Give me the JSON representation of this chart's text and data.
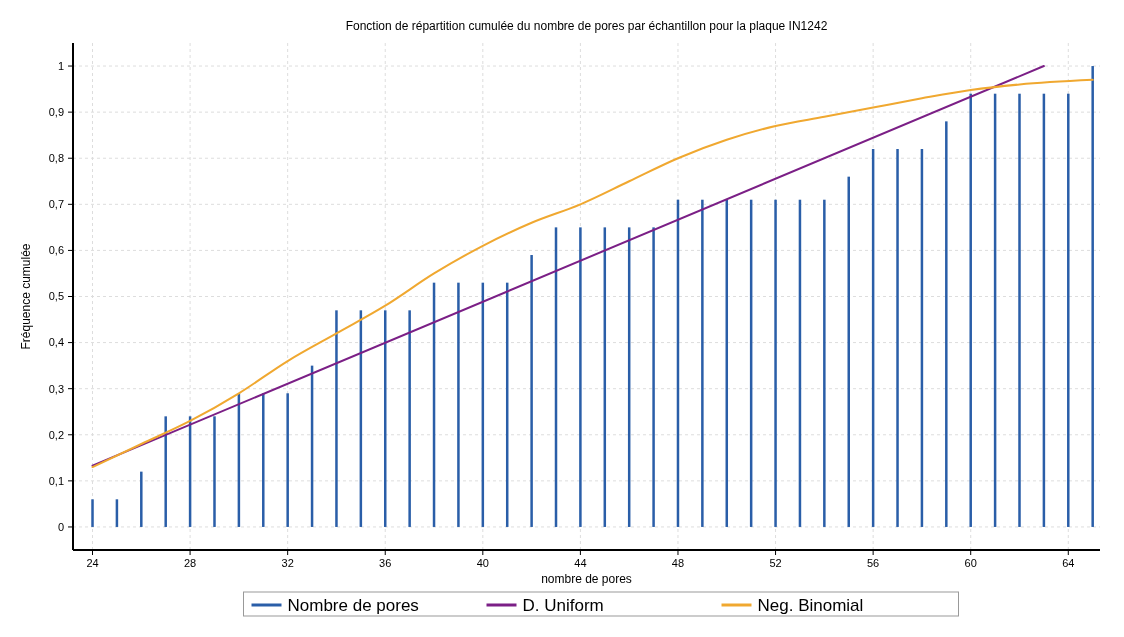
{
  "chart_data": {
    "type": "bar",
    "title": "Fonction de répartition cumulée du nombre de pores par échantillon pour la plaque IN1242",
    "xlabel": "nombre de pores",
    "ylabel": "Fréquence cumulée",
    "xlim": [
      23.2,
      65.3
    ],
    "xticks": [
      24,
      28,
      32,
      36,
      40,
      44,
      48,
      52,
      56,
      60,
      64
    ],
    "ylim": [
      -0.05,
      1.05
    ],
    "yticks": [
      {
        "value": 0,
        "label": "0"
      },
      {
        "value": 0.1,
        "label": "0,1"
      },
      {
        "value": 0.2,
        "label": "0,2"
      },
      {
        "value": 0.3,
        "label": "0,3"
      },
      {
        "value": 0.4,
        "label": "0,4"
      },
      {
        "value": 0.5,
        "label": "0,5"
      },
      {
        "value": 0.6,
        "label": "0,6"
      },
      {
        "value": 0.7,
        "label": "0,7"
      },
      {
        "value": 0.8,
        "label": "0,8"
      },
      {
        "value": 0.9,
        "label": "0,9"
      },
      {
        "value": 1,
        "label": "1"
      }
    ],
    "grid": true,
    "legend": "bottom",
    "series": [
      {
        "name": "Nombre de pores",
        "color": "#2a5ea8",
        "x": [
          24,
          25,
          26,
          27,
          28,
          29,
          30,
          31,
          32,
          33,
          34,
          35,
          36,
          37,
          38,
          39,
          40,
          41,
          42,
          43,
          44,
          45,
          46,
          47,
          48,
          49,
          50,
          51,
          52,
          53,
          54,
          55,
          56,
          57,
          58,
          59,
          60,
          61,
          62,
          63,
          64,
          65
        ],
        "values": [
          0.06,
          0.06,
          0.12,
          0.24,
          0.24,
          0.24,
          0.29,
          0.29,
          0.29,
          0.35,
          0.47,
          0.47,
          0.47,
          0.47,
          0.53,
          0.53,
          0.53,
          0.53,
          0.59,
          0.65,
          0.65,
          0.65,
          0.65,
          0.65,
          0.71,
          0.71,
          0.71,
          0.71,
          0.71,
          0.71,
          0.71,
          0.76,
          0.82,
          0.82,
          0.82,
          0.88,
          0.94,
          0.94,
          0.94,
          0.94,
          0.94,
          1
        ]
      },
      {
        "name": "D. Uniform",
        "type": "line",
        "color": "#7b1f86",
        "x": [
          24,
          63
        ],
        "values": [
          0.133,
          1
        ]
      },
      {
        "name": "Neg. Binomial",
        "type": "line",
        "color": "#f0a830",
        "x": [
          24,
          26,
          28,
          30,
          32,
          34,
          36,
          38,
          40,
          42,
          44,
          46,
          48,
          50,
          52,
          54,
          56,
          58,
          60,
          62,
          65
        ],
        "values": [
          0.13,
          0.18,
          0.23,
          0.29,
          0.36,
          0.42,
          0.48,
          0.55,
          0.61,
          0.66,
          0.7,
          0.75,
          0.8,
          0.84,
          0.87,
          0.89,
          0.91,
          0.93,
          0.948,
          0.96,
          0.97
        ]
      }
    ]
  }
}
